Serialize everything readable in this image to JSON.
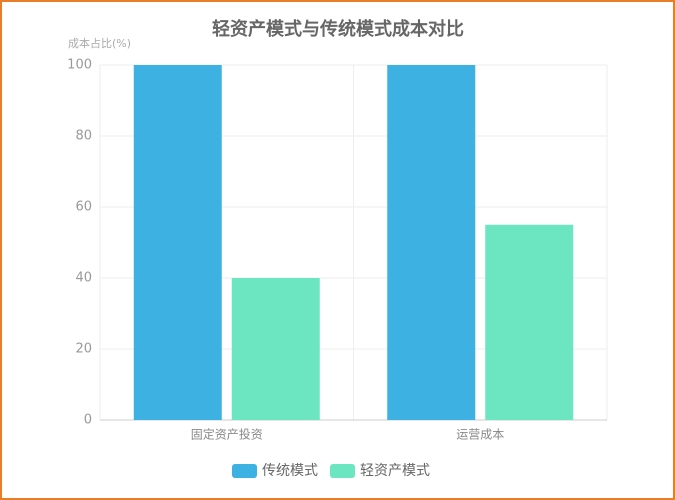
{
  "chart_data": {
    "type": "bar",
    "title": "轻资产模式与传统模式成本对比",
    "y_label": "成本占比(%)",
    "categories": [
      "固定资产投资",
      "运营成本"
    ],
    "series": [
      {
        "name": "传统模式",
        "color": "#3db1e1",
        "values": [
          100,
          100
        ]
      },
      {
        "name": "轻资产模式",
        "color": "#6be6c1",
        "values": [
          40,
          55
        ]
      }
    ],
    "ylim": [
      0,
      100
    ],
    "yticks": [
      0,
      20,
      40,
      60,
      80,
      100
    ],
    "grid": true,
    "legend": "bottom"
  }
}
